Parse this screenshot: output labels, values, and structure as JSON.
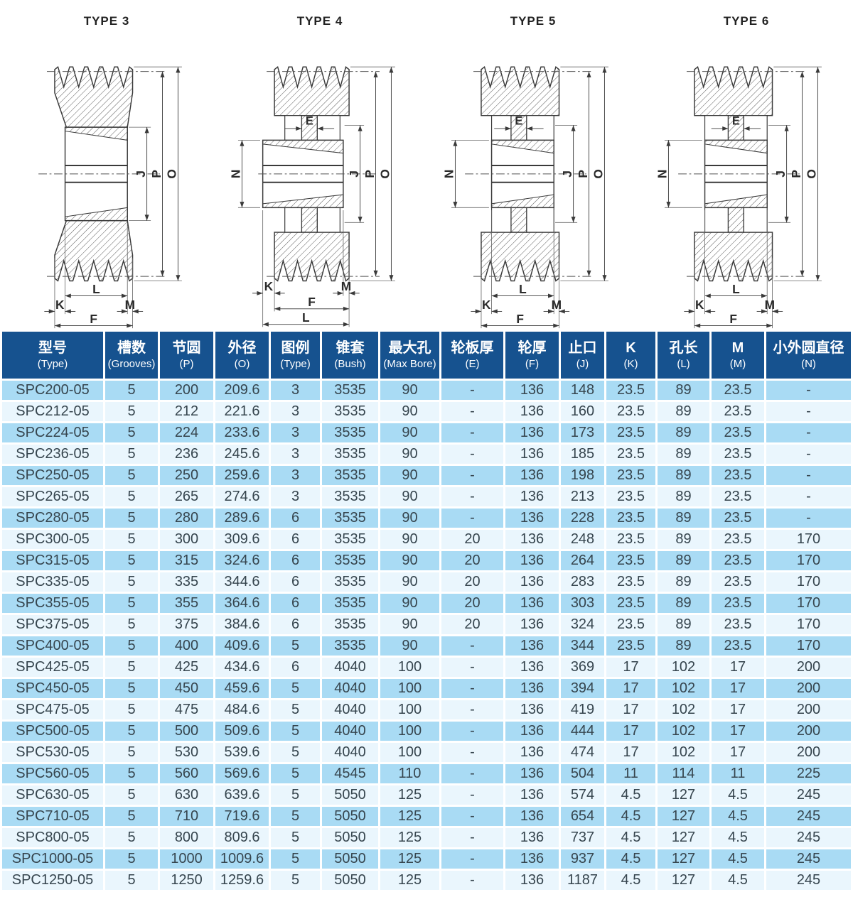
{
  "drawings": {
    "items": [
      {
        "title": "TYPE 3",
        "figure_type": "3",
        "dims": {
          "right": [
            "J",
            "P",
            "O"
          ],
          "left": null,
          "inner": null,
          "bottom": [
            "L",
            "K",
            "M",
            "F"
          ]
        }
      },
      {
        "title": "TYPE 4",
        "figure_type": "4",
        "dims": {
          "right": [
            "J",
            "P",
            "O"
          ],
          "left": "N",
          "inner": "E",
          "bottom": [
            "K",
            "M",
            "F",
            "L"
          ]
        }
      },
      {
        "title": "TYPE 5",
        "figure_type": "5",
        "dims": {
          "right": [
            "J",
            "P",
            "O"
          ],
          "left": "N",
          "inner": "E",
          "bottom": [
            "L",
            "K",
            "M",
            "F"
          ]
        }
      },
      {
        "title": "TYPE 6",
        "figure_type": "6",
        "dims": {
          "right": [
            "J",
            "P",
            "O"
          ],
          "left": "N",
          "inner": "E",
          "bottom": [
            "L",
            "K",
            "M",
            "F"
          ]
        }
      }
    ]
  },
  "table": {
    "columns": [
      {
        "zh": "型号",
        "en": "(Type)"
      },
      {
        "zh": "槽数",
        "en": "(Grooves)"
      },
      {
        "zh": "节圆",
        "en": "(P)"
      },
      {
        "zh": "外径",
        "en": "(O)"
      },
      {
        "zh": "图例",
        "en": "(Type)"
      },
      {
        "zh": "锥套",
        "en": "(Bush)"
      },
      {
        "zh": "最大孔",
        "en": "(Max Bore)"
      },
      {
        "zh": "轮板厚",
        "en": "(E)"
      },
      {
        "zh": "轮厚",
        "en": "(F)"
      },
      {
        "zh": "止口",
        "en": "(J)"
      },
      {
        "zh": "K",
        "en": "(K)"
      },
      {
        "zh": "孔长",
        "en": "(L)"
      },
      {
        "zh": "M",
        "en": "(M)"
      },
      {
        "zh": "小外圆直径",
        "en": "(N)"
      }
    ],
    "rows": [
      [
        "SPC200-05",
        "5",
        "200",
        "209.6",
        "3",
        "3535",
        "90",
        "-",
        "136",
        "148",
        "23.5",
        "89",
        "23.5",
        "-"
      ],
      [
        "SPC212-05",
        "5",
        "212",
        "221.6",
        "3",
        "3535",
        "90",
        "-",
        "136",
        "160",
        "23.5",
        "89",
        "23.5",
        "-"
      ],
      [
        "SPC224-05",
        "5",
        "224",
        "233.6",
        "3",
        "3535",
        "90",
        "-",
        "136",
        "173",
        "23.5",
        "89",
        "23.5",
        "-"
      ],
      [
        "SPC236-05",
        "5",
        "236",
        "245.6",
        "3",
        "3535",
        "90",
        "-",
        "136",
        "185",
        "23.5",
        "89",
        "23.5",
        "-"
      ],
      [
        "SPC250-05",
        "5",
        "250",
        "259.6",
        "3",
        "3535",
        "90",
        "-",
        "136",
        "198",
        "23.5",
        "89",
        "23.5",
        "-"
      ],
      [
        "SPC265-05",
        "5",
        "265",
        "274.6",
        "3",
        "3535",
        "90",
        "-",
        "136",
        "213",
        "23.5",
        "89",
        "23.5",
        "-"
      ],
      [
        "SPC280-05",
        "5",
        "280",
        "289.6",
        "6",
        "3535",
        "90",
        "-",
        "136",
        "228",
        "23.5",
        "89",
        "23.5",
        "-"
      ],
      [
        "SPC300-05",
        "5",
        "300",
        "309.6",
        "6",
        "3535",
        "90",
        "20",
        "136",
        "248",
        "23.5",
        "89",
        "23.5",
        "170"
      ],
      [
        "SPC315-05",
        "5",
        "315",
        "324.6",
        "6",
        "3535",
        "90",
        "20",
        "136",
        "264",
        "23.5",
        "89",
        "23.5",
        "170"
      ],
      [
        "SPC335-05",
        "5",
        "335",
        "344.6",
        "6",
        "3535",
        "90",
        "20",
        "136",
        "283",
        "23.5",
        "89",
        "23.5",
        "170"
      ],
      [
        "SPC355-05",
        "5",
        "355",
        "364.6",
        "6",
        "3535",
        "90",
        "20",
        "136",
        "303",
        "23.5",
        "89",
        "23.5",
        "170"
      ],
      [
        "SPC375-05",
        "5",
        "375",
        "384.6",
        "6",
        "3535",
        "90",
        "20",
        "136",
        "324",
        "23.5",
        "89",
        "23.5",
        "170"
      ],
      [
        "SPC400-05",
        "5",
        "400",
        "409.6",
        "5",
        "3535",
        "90",
        "-",
        "136",
        "344",
        "23.5",
        "89",
        "23.5",
        "170"
      ],
      [
        "SPC425-05",
        "5",
        "425",
        "434.6",
        "6",
        "4040",
        "100",
        "-",
        "136",
        "369",
        "17",
        "102",
        "17",
        "200"
      ],
      [
        "SPC450-05",
        "5",
        "450",
        "459.6",
        "5",
        "4040",
        "100",
        "-",
        "136",
        "394",
        "17",
        "102",
        "17",
        "200"
      ],
      [
        "SPC475-05",
        "5",
        "475",
        "484.6",
        "5",
        "4040",
        "100",
        "-",
        "136",
        "419",
        "17",
        "102",
        "17",
        "200"
      ],
      [
        "SPC500-05",
        "5",
        "500",
        "509.6",
        "5",
        "4040",
        "100",
        "-",
        "136",
        "444",
        "17",
        "102",
        "17",
        "200"
      ],
      [
        "SPC530-05",
        "5",
        "530",
        "539.6",
        "5",
        "4040",
        "100",
        "-",
        "136",
        "474",
        "17",
        "102",
        "17",
        "200"
      ],
      [
        "SPC560-05",
        "5",
        "560",
        "569.6",
        "5",
        "4545",
        "110",
        "-",
        "136",
        "504",
        "11",
        "114",
        "11",
        "225"
      ],
      [
        "SPC630-05",
        "5",
        "630",
        "639.6",
        "5",
        "5050",
        "125",
        "-",
        "136",
        "574",
        "4.5",
        "127",
        "4.5",
        "245"
      ],
      [
        "SPC710-05",
        "5",
        "710",
        "719.6",
        "5",
        "5050",
        "125",
        "-",
        "136",
        "654",
        "4.5",
        "127",
        "4.5",
        "245"
      ],
      [
        "SPC800-05",
        "5",
        "800",
        "809.6",
        "5",
        "5050",
        "125",
        "-",
        "136",
        "737",
        "4.5",
        "127",
        "4.5",
        "245"
      ],
      [
        "SPC1000-05",
        "5",
        "1000",
        "1009.6",
        "5",
        "5050",
        "125",
        "-",
        "136",
        "937",
        "4.5",
        "127",
        "4.5",
        "245"
      ],
      [
        "SPC1250-05",
        "5",
        "1250",
        "1259.6",
        "5",
        "5050",
        "125",
        "-",
        "136",
        "1187",
        "4.5",
        "127",
        "4.5",
        "245"
      ]
    ]
  },
  "colors": {
    "header_bg": "#16528F",
    "header_text": "#FFFFFF",
    "row_odd": "#A9DBF4",
    "row_even": "#EAF6FD",
    "row_text": "#36454E",
    "line": "#3A3A3A"
  }
}
